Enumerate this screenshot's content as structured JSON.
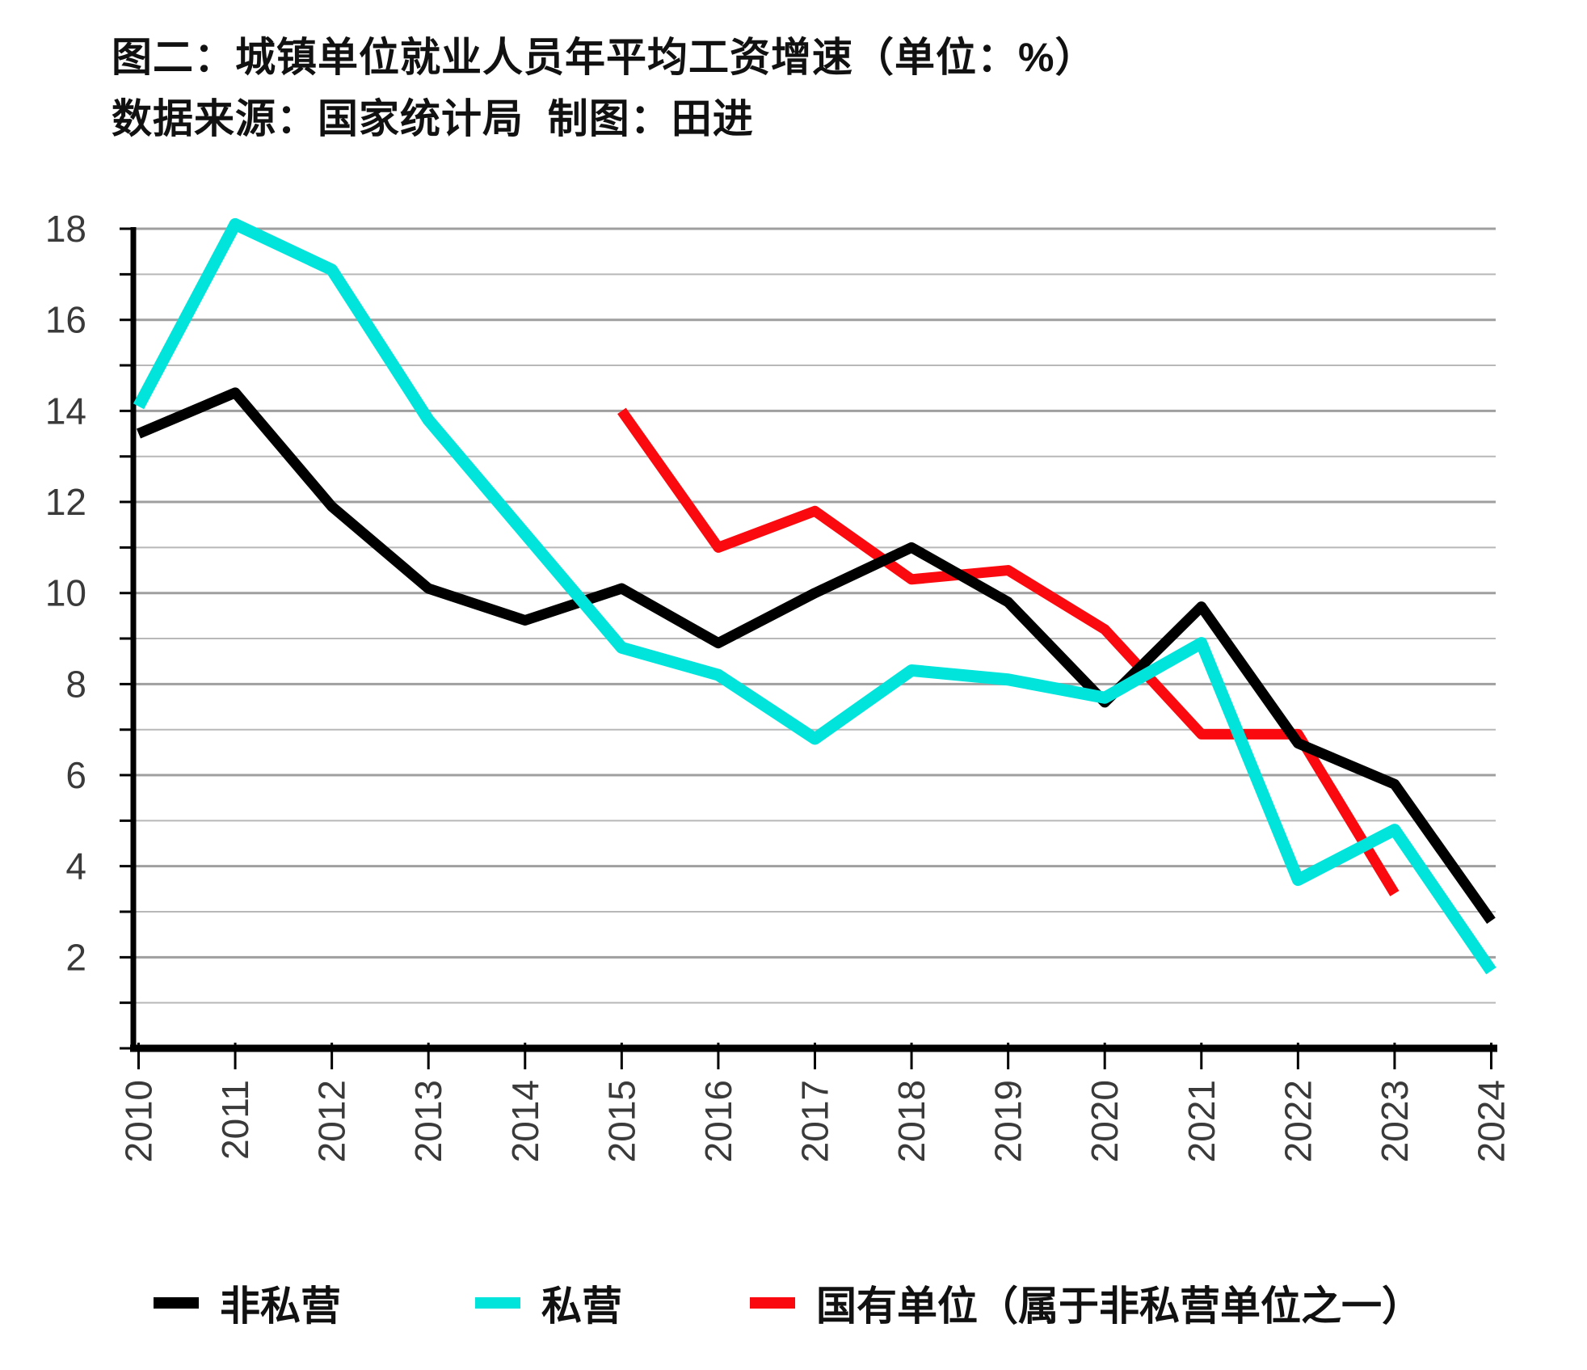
{
  "header": {
    "title": "图二：城镇单位就业人员年平均工资增速（单位：%）",
    "subtitle": "数据来源：国家统计局  制图：田进"
  },
  "colors": {
    "non_private_line": "#000000",
    "private_line": "#00e4dc",
    "state_owned_line": "#fa0a0f",
    "gridline_major": "#9f9f9f",
    "gridline_minor": "#b8b8b8",
    "axis": "#000000",
    "tick_label": "#3a3a3a"
  },
  "chart_data": {
    "type": "line",
    "title": "图二：城镇单位就业人员年平均工资增速（单位：%）",
    "source_note": "数据来源：国家统计局  制图：田进",
    "xlabel": "",
    "ylabel": "",
    "x": [
      2010,
      2011,
      2012,
      2013,
      2014,
      2015,
      2016,
      2017,
      2018,
      2019,
      2020,
      2021,
      2022,
      2023,
      2024
    ],
    "x_tick_labels": [
      "2010",
      "2011",
      "2012",
      "2013",
      "2014",
      "2015",
      "2016",
      "2017",
      "2018",
      "2019",
      "2020",
      "2021",
      "2022",
      "2023",
      "2024"
    ],
    "ylim": [
      0,
      18
    ],
    "y_major_tick_labels": [
      "2",
      "4",
      "6",
      "8",
      "10",
      "12",
      "14",
      "16",
      "18"
    ],
    "y_major_ticks": [
      2,
      4,
      6,
      8,
      10,
      12,
      14,
      16,
      18
    ],
    "gridline_step": 1,
    "grid": "horizontal",
    "legend_position": "bottom",
    "x_tick_label_rotation_deg": -90,
    "series": [
      {
        "name": "非私营",
        "color": "#000000",
        "line_width": 13,
        "values": [
          13.5,
          14.4,
          11.9,
          10.1,
          9.4,
          10.1,
          8.9,
          10.0,
          11.0,
          9.8,
          7.6,
          9.7,
          6.7,
          5.8,
          2.8
        ]
      },
      {
        "name": "私营",
        "color": "#00e4dc",
        "line_width": 15,
        "values": [
          14.1,
          18.1,
          17.1,
          13.8,
          11.3,
          8.8,
          8.2,
          6.8,
          8.3,
          8.1,
          7.7,
          8.9,
          3.7,
          4.8,
          1.7
        ]
      },
      {
        "name": "国有单位（属于非私营单位之一）",
        "color": "#fa0a0f",
        "line_width": 13,
        "values": [
          null,
          null,
          null,
          null,
          null,
          14.0,
          11.0,
          11.8,
          10.3,
          10.5,
          9.2,
          6.9,
          6.9,
          3.4,
          null
        ]
      }
    ]
  }
}
